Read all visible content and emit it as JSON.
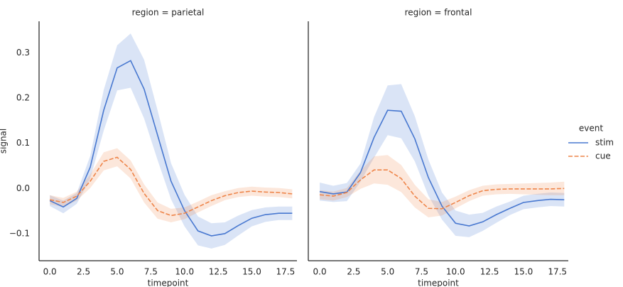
{
  "chart_data": [
    {
      "type": "line",
      "title": "region = parietal",
      "xlabel": "timepoint",
      "ylabel": "signal",
      "legend_title": "event",
      "x": [
        0,
        1,
        2,
        3,
        4,
        5,
        6,
        7,
        8,
        9,
        10,
        11,
        12,
        13,
        14,
        15,
        16,
        17,
        18
      ],
      "xlim": [
        -0.8,
        18.35
      ],
      "ylim": [
        -0.16,
        0.37
      ],
      "xticks": [
        {
          "value": 0,
          "label": "0.0"
        },
        2.5,
        {
          "value": 5,
          "label": "5.0"
        },
        7.5,
        {
          "value": 10,
          "label": "10.0"
        },
        12.5,
        {
          "value": 15,
          "label": "15.0"
        },
        17.5
      ],
      "yticks": [
        {
          "value": -0.1,
          "label": "−0.1"
        },
        {
          "value": 0,
          "label": "0.0"
        },
        0.1,
        0.2,
        0.3
      ],
      "series": [
        {
          "name": "stim",
          "color": "#4878d0",
          "dash": false,
          "values": [
            -0.027,
            -0.041,
            -0.022,
            0.047,
            0.173,
            0.267,
            0.283,
            0.22,
            0.118,
            0.016,
            -0.049,
            -0.094,
            -0.105,
            -0.1,
            -0.082,
            -0.066,
            -0.058,
            -0.055,
            -0.055
          ],
          "lower": [
            -0.039,
            -0.055,
            -0.034,
            0.022,
            0.128,
            0.217,
            0.223,
            0.155,
            0.063,
            -0.024,
            -0.084,
            -0.126,
            -0.133,
            -0.125,
            -0.104,
            -0.084,
            -0.074,
            -0.07,
            -0.07
          ],
          "upper": [
            -0.015,
            -0.027,
            -0.01,
            0.072,
            0.218,
            0.317,
            0.343,
            0.285,
            0.173,
            0.056,
            -0.014,
            -0.062,
            -0.077,
            -0.075,
            -0.06,
            -0.048,
            -0.042,
            -0.04,
            -0.04
          ]
        },
        {
          "name": "cue",
          "color": "#ee854a",
          "dash": true,
          "values": [
            -0.025,
            -0.031,
            -0.017,
            0.016,
            0.06,
            0.069,
            0.042,
            -0.011,
            -0.049,
            -0.06,
            -0.055,
            -0.041,
            -0.027,
            -0.016,
            -0.009,
            -0.006,
            -0.008,
            -0.009,
            -0.012
          ],
          "lower": [
            -0.035,
            -0.041,
            -0.027,
            0.001,
            0.04,
            0.049,
            0.022,
            -0.031,
            -0.067,
            -0.075,
            -0.068,
            -0.053,
            -0.039,
            -0.026,
            -0.019,
            -0.016,
            -0.018,
            -0.019,
            -0.022
          ],
          "upper": [
            -0.015,
            -0.021,
            -0.007,
            0.031,
            0.08,
            0.089,
            0.062,
            0.009,
            -0.031,
            -0.045,
            -0.042,
            -0.029,
            -0.015,
            -0.006,
            0.001,
            0.004,
            0.002,
            0.001,
            -0.002
          ]
        }
      ]
    },
    {
      "type": "line",
      "title": "region = frontal",
      "xlabel": "timepoint",
      "x": [
        0,
        1,
        2,
        3,
        4,
        5,
        6,
        7,
        8,
        9,
        10,
        11,
        12,
        13,
        14,
        15,
        16,
        17,
        18
      ],
      "xlim": [
        -0.84,
        18.3
      ],
      "ylim": [
        -0.16,
        0.37
      ],
      "xticks": [
        {
          "value": 0,
          "label": "0.0"
        },
        2.5,
        {
          "value": 5,
          "label": "5.0"
        },
        7.5,
        {
          "value": 10,
          "label": "10.0"
        },
        12.5,
        {
          "value": 15,
          "label": "15.0"
        },
        17.5
      ],
      "series": [
        {
          "color": "#4878d0",
          "dash": false,
          "values": [
            -0.007,
            -0.012,
            -0.008,
            0.035,
            0.113,
            0.173,
            0.171,
            0.11,
            0.024,
            -0.039,
            -0.077,
            -0.083,
            -0.074,
            -0.058,
            -0.044,
            -0.031,
            -0.027,
            -0.024,
            -0.025
          ],
          "lower": [
            -0.027,
            -0.03,
            -0.028,
            0.015,
            0.068,
            0.118,
            0.111,
            0.06,
            -0.016,
            -0.069,
            -0.105,
            -0.108,
            -0.094,
            -0.076,
            -0.059,
            -0.046,
            -0.042,
            -0.039,
            -0.04
          ],
          "upper": [
            0.013,
            0.006,
            0.012,
            0.055,
            0.158,
            0.228,
            0.231,
            0.16,
            0.064,
            -0.009,
            -0.049,
            -0.058,
            -0.054,
            -0.04,
            -0.029,
            -0.016,
            -0.012,
            -0.009,
            -0.01
          ]
        },
        {
          "color": "#ee854a",
          "dash": true,
          "values": [
            -0.014,
            -0.017,
            -0.009,
            0.019,
            0.041,
            0.041,
            0.022,
            -0.017,
            -0.044,
            -0.045,
            -0.031,
            -0.016,
            -0.005,
            -0.002,
            -0.001,
            -0.001,
            -0.001,
            -0.001,
            0.0
          ],
          "lower": [
            -0.024,
            -0.027,
            -0.019,
            -0.001,
            0.011,
            0.008,
            -0.008,
            -0.042,
            -0.064,
            -0.06,
            -0.044,
            -0.028,
            -0.016,
            -0.013,
            -0.012,
            -0.013,
            -0.014,
            -0.015,
            -0.015
          ],
          "upper": [
            -0.004,
            -0.007,
            0.001,
            0.039,
            0.071,
            0.074,
            0.052,
            0.008,
            -0.024,
            -0.03,
            -0.018,
            -0.004,
            0.006,
            0.009,
            0.01,
            0.011,
            0.012,
            0.013,
            0.015
          ]
        }
      ]
    }
  ]
}
